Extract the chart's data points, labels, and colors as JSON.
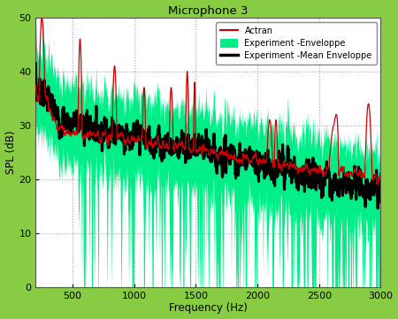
{
  "title": "Microphone 3",
  "xlabel": "Frequency (Hz)",
  "ylabel": "SPL (dB)",
  "xlim": [
    200,
    3000
  ],
  "ylim": [
    0,
    50
  ],
  "xticks": [
    500,
    1000,
    1500,
    2000,
    2500,
    3000
  ],
  "yticks": [
    0,
    10,
    20,
    30,
    40,
    50
  ],
  "envelope_color": "#00EE88",
  "mean_color": "#000000",
  "actran_color": "#CC0000",
  "bg_color": "#FFFFFF",
  "outer_bg": "#88CC44",
  "legend_entries": [
    "Actran",
    "Experiment -Enveloppe",
    "Experiment -Mean Enveloppe"
  ],
  "seed": 7,
  "freq_start": 200,
  "freq_end": 3000,
  "n_points": 2000
}
